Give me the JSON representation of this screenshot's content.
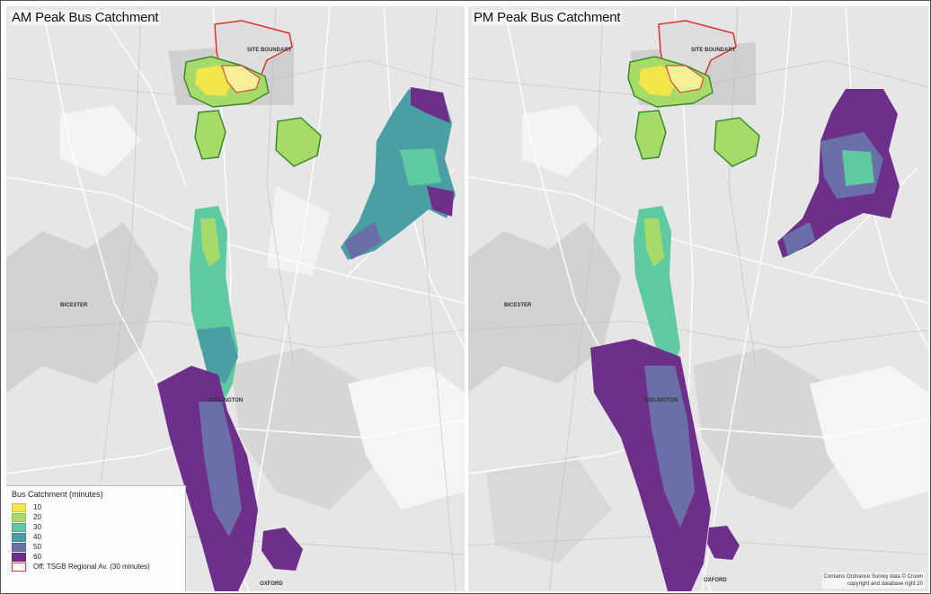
{
  "panels": [
    {
      "title": "AM Peak Bus Catchment",
      "labels": {
        "site_boundary": "Site Boundary",
        "town_west": "BICESTER",
        "town_mid": "KIDLINGTON",
        "city": "OXFORD"
      }
    },
    {
      "title": "PM Peak Bus Catchment",
      "labels": {
        "site_boundary": "Site Boundary",
        "town_west": "BICESTER",
        "town_mid": "KIDLINGTON",
        "city": "OXFORD"
      }
    }
  ],
  "legend": {
    "title": "Bus Catchment (minutes)",
    "items": [
      {
        "label": "10",
        "color": "#f2e64a"
      },
      {
        "label": "20",
        "color": "#a6db6a"
      },
      {
        "label": "30",
        "color": "#5fc9a0"
      },
      {
        "label": "40",
        "color": "#4a9fa4"
      },
      {
        "label": "50",
        "color": "#6b6fa8"
      },
      {
        "label": "60",
        "color": "#6e2f8a"
      }
    ],
    "outline_item": "Off: TSGB Regional Av. (30 minutes)"
  },
  "attribution": {
    "line1": "Contains Ordnance Survey data © Crown",
    "line2": "copyright and database right 20"
  },
  "colors": {
    "background": "#e9e9e9",
    "site_outline": "#e0302a",
    "catchment_outline": "#3a8a2a"
  }
}
